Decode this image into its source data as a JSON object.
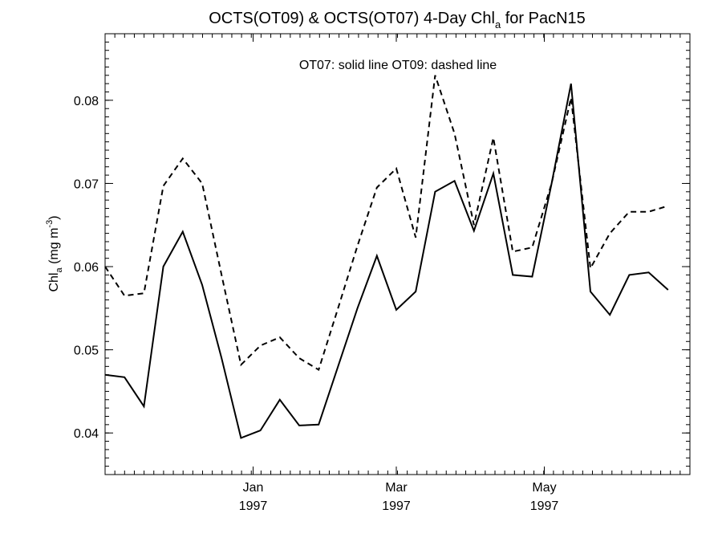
{
  "chart_data": {
    "type": "line",
    "title": {
      "prefix": "OCTS(OT09) & OCTS(OT07) 4-Day Chl",
      "sub": "a",
      "suffix": " for PacN15"
    },
    "ylabel": {
      "prefix": "Chl",
      "sub": "a",
      "mid": " (mg m",
      "sup": "-3",
      "suffix": ")"
    },
    "annotation": "OT07: solid line   OT09: dashed line",
    "xlim": [
      "1996-11-01",
      "1997-06-30"
    ],
    "ylim": [
      0.035,
      0.088
    ],
    "yticks": [
      {
        "value": 0.04,
        "label": "0.04"
      },
      {
        "value": 0.05,
        "label": "0.05"
      },
      {
        "value": 0.06,
        "label": "0.06"
      },
      {
        "value": 0.07,
        "label": "0.07"
      },
      {
        "value": 0.08,
        "label": "0.08"
      }
    ],
    "xticks": [
      {
        "date": "1997-01-01",
        "label1": "Jan",
        "label2": "1997"
      },
      {
        "date": "1997-03-01",
        "label1": "Mar",
        "label2": "1997"
      },
      {
        "date": "1997-05-01",
        "label1": "May",
        "label2": "1997"
      }
    ],
    "grid": false,
    "x": [
      "1996-11-01",
      "1996-11-09",
      "1996-11-17",
      "1996-11-25",
      "1996-12-03",
      "1996-12-11",
      "1996-12-19",
      "1996-12-27",
      "1997-01-04",
      "1997-01-12",
      "1997-01-20",
      "1997-01-28",
      "1997-02-05",
      "1997-02-13",
      "1997-02-21",
      "1997-03-01",
      "1997-03-09",
      "1997-03-17",
      "1997-03-25",
      "1997-04-02",
      "1997-04-10",
      "1997-04-18",
      "1997-04-26",
      "1997-05-04",
      "1997-05-12",
      "1997-05-20",
      "1997-05-28",
      "1997-06-05",
      "1997-06-13",
      "1997-06-21"
    ],
    "series": [
      {
        "name": "OT07",
        "style": "solid",
        "color": "#000000",
        "values": [
          0.047,
          0.0467,
          0.0432,
          0.06,
          0.0642,
          0.0578,
          0.049,
          0.0394,
          0.0403,
          0.044,
          0.0409,
          0.041,
          0.048,
          0.055,
          0.0613,
          0.0548,
          0.057,
          0.069,
          0.0703,
          0.0643,
          0.0712,
          0.059,
          0.0588,
          0.07,
          0.082,
          0.057,
          0.0542,
          0.059,
          0.0593,
          0.0572
        ]
      },
      {
        "name": "OT09",
        "style": "dashed",
        "color": "#000000",
        "values": [
          0.06,
          0.0565,
          0.0568,
          0.0697,
          0.073,
          0.07,
          0.059,
          0.0482,
          0.0505,
          0.0515,
          0.049,
          0.0476,
          0.055,
          0.0625,
          0.0695,
          0.0718,
          0.0635,
          0.083,
          0.076,
          0.065,
          0.0755,
          0.0618,
          0.0623,
          0.07,
          0.0803,
          0.0598,
          0.064,
          0.0666,
          0.0666,
          0.0673
        ]
      }
    ]
  }
}
